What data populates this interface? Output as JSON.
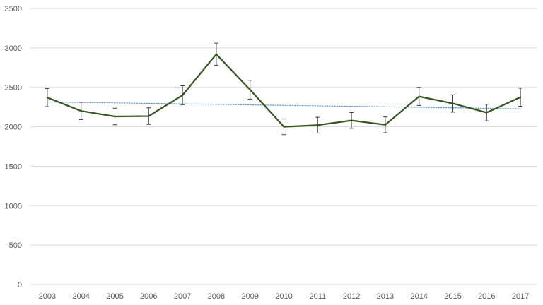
{
  "chart_data": {
    "type": "line",
    "title": "",
    "xlabel": "",
    "ylabel": "",
    "categories": [
      "2003",
      "2004",
      "2005",
      "2006",
      "2007",
      "2008",
      "2009",
      "2010",
      "2011",
      "2012",
      "2013",
      "2014",
      "2015",
      "2016",
      "2017"
    ],
    "series": [
      {
        "values": [
          2370,
          2200,
          2130,
          2135,
          2400,
          2920,
          2470,
          2000,
          2020,
          2080,
          2025,
          2385,
          2295,
          2180,
          2375
        ],
        "error": [
          115,
          110,
          105,
          105,
          120,
          140,
          120,
          100,
          100,
          100,
          100,
          115,
          110,
          105,
          115
        ],
        "color": "#375623"
      }
    ],
    "trendline": {
      "type": "linear",
      "start": 2315,
      "end": 2228,
      "color": "#5b9bd5",
      "style": "dotted"
    },
    "ylim": [
      0,
      3500
    ],
    "yticks": [
      0,
      500,
      1000,
      1500,
      2000,
      2500,
      3000,
      3500
    ],
    "grid": true,
    "legend": "none"
  }
}
